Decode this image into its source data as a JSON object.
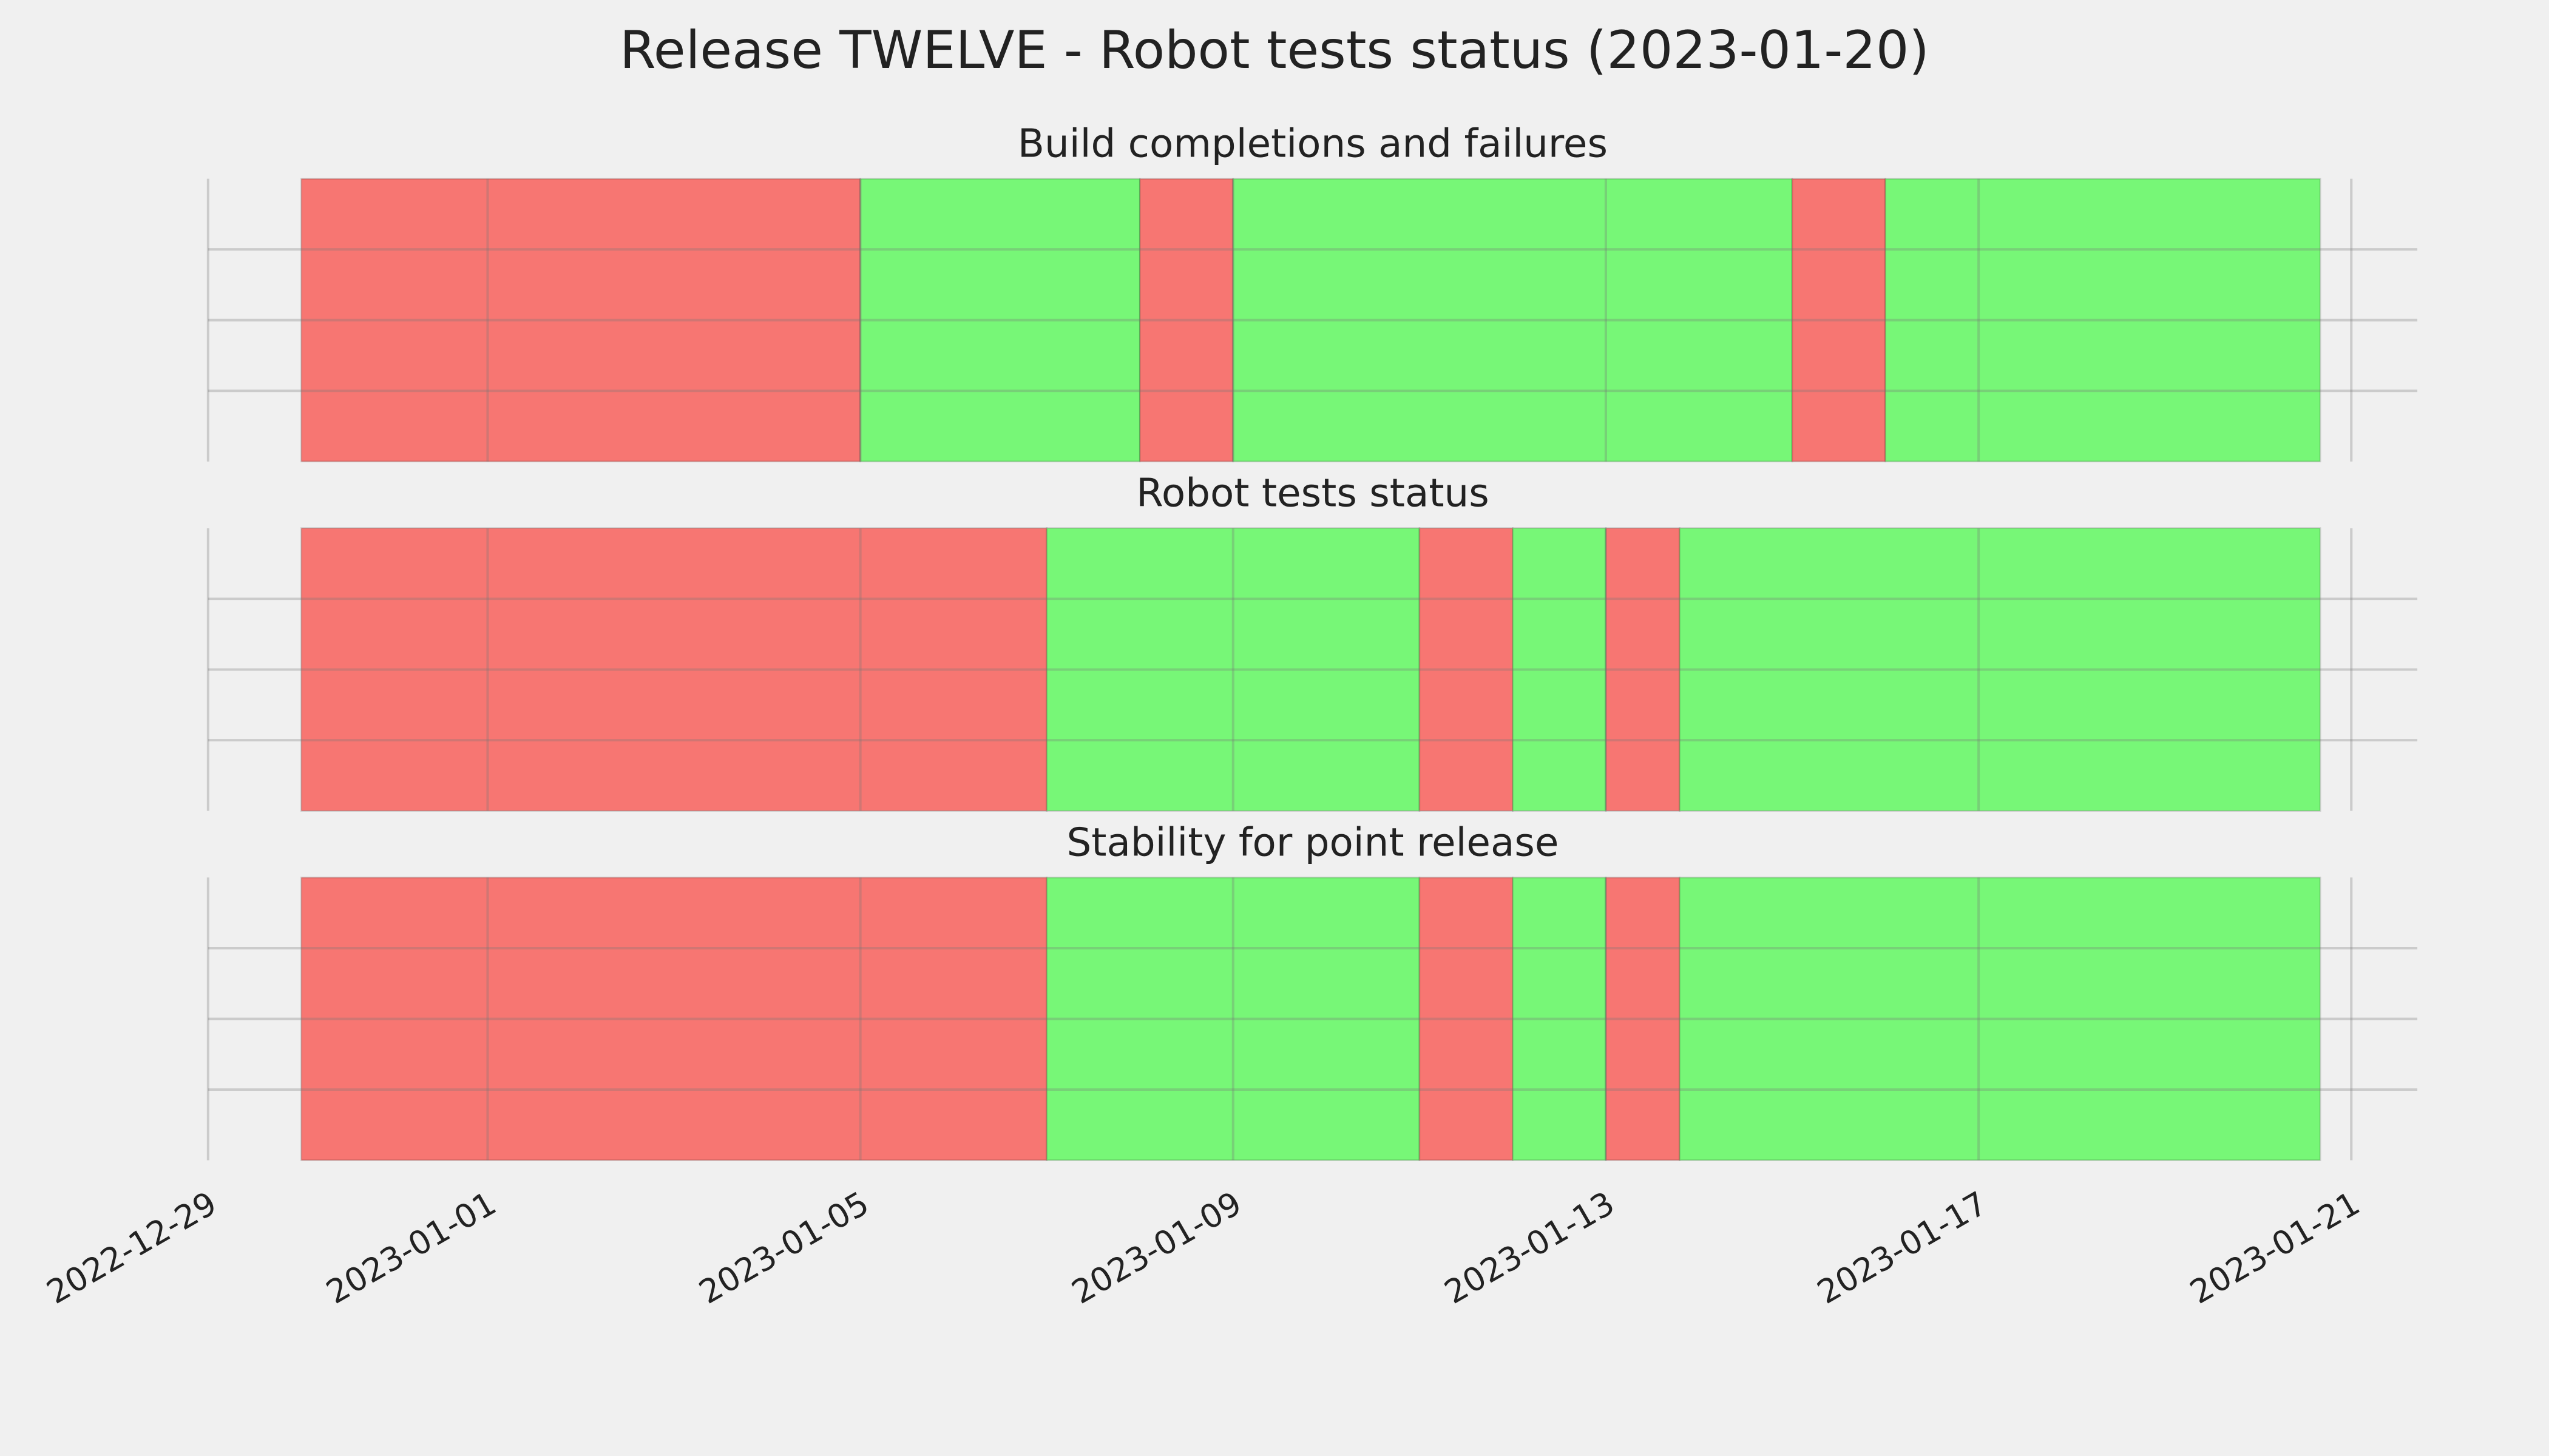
{
  "title": "Release TWELVE - Robot tests status (2023-01-20)",
  "chart_data": [
    {
      "type": "timeline",
      "title": "Build completions and failures",
      "spans": [
        {
          "start": "2022-12-30",
          "end": "2023-01-05",
          "color": "#f77672"
        },
        {
          "start": "2023-01-05",
          "end": "2023-01-08",
          "color": "#77f777"
        },
        {
          "start": "2023-01-08",
          "end": "2023-01-09",
          "color": "#f77672"
        },
        {
          "start": "2023-01-09",
          "end": "2023-01-15",
          "color": "#77f777"
        },
        {
          "start": "2023-01-15",
          "end": "2023-01-16",
          "color": "#f77672"
        },
        {
          "start": "2023-01-16",
          "end": "2023-01-20T16:00",
          "color": "#77f777"
        }
      ],
      "xlim": [
        "2022-12-29",
        "2023-01-21T17:00"
      ],
      "xticks": [
        "2022-12-29",
        "2023-01-01",
        "2023-01-05",
        "2023-01-09",
        "2023-01-13",
        "2023-01-17",
        "2023-01-21"
      ],
      "ylim": [
        0,
        1
      ],
      "yticks": [
        0.25,
        0.5,
        0.75
      ],
      "grid": true
    },
    {
      "type": "timeline",
      "title": "Robot tests status",
      "spans": [
        {
          "start": "2022-12-30",
          "end": "2023-01-07",
          "color": "#f77672"
        },
        {
          "start": "2023-01-07",
          "end": "2023-01-11",
          "color": "#77f777"
        },
        {
          "start": "2023-01-11",
          "end": "2023-01-12",
          "color": "#f77672"
        },
        {
          "start": "2023-01-12",
          "end": "2023-01-13",
          "color": "#77f777"
        },
        {
          "start": "2023-01-13",
          "end": "2023-01-13T19:00",
          "color": "#f77672"
        },
        {
          "start": "2023-01-13T19:00",
          "end": "2023-01-20T16:00",
          "color": "#77f777"
        }
      ],
      "xlim": [
        "2022-12-29",
        "2023-01-21T17:00"
      ],
      "xticks": [
        "2022-12-29",
        "2023-01-01",
        "2023-01-05",
        "2023-01-09",
        "2023-01-13",
        "2023-01-17",
        "2023-01-21"
      ],
      "ylim": [
        0,
        1
      ],
      "yticks": [
        0.25,
        0.5,
        0.75
      ],
      "grid": true
    },
    {
      "type": "timeline",
      "title": "Stability for point release",
      "spans": [
        {
          "start": "2022-12-30",
          "end": "2023-01-07",
          "color": "#f77672"
        },
        {
          "start": "2023-01-07",
          "end": "2023-01-11",
          "color": "#77f777"
        },
        {
          "start": "2023-01-11",
          "end": "2023-01-12",
          "color": "#f77672"
        },
        {
          "start": "2023-01-12",
          "end": "2023-01-13",
          "color": "#77f777"
        },
        {
          "start": "2023-01-13",
          "end": "2023-01-13T19:00",
          "color": "#f77672"
        },
        {
          "start": "2023-01-13T19:00",
          "end": "2023-01-20T16:00",
          "color": "#77f777"
        }
      ],
      "xlim": [
        "2022-12-29",
        "2023-01-21T17:00"
      ],
      "xticks": [
        "2022-12-29",
        "2023-01-01",
        "2023-01-05",
        "2023-01-09",
        "2023-01-13",
        "2023-01-17",
        "2023-01-21"
      ],
      "ylim": [
        0,
        1
      ],
      "yticks": [
        0.25,
        0.5,
        0.75
      ],
      "grid": true,
      "show_xtick_labels": true
    }
  ]
}
